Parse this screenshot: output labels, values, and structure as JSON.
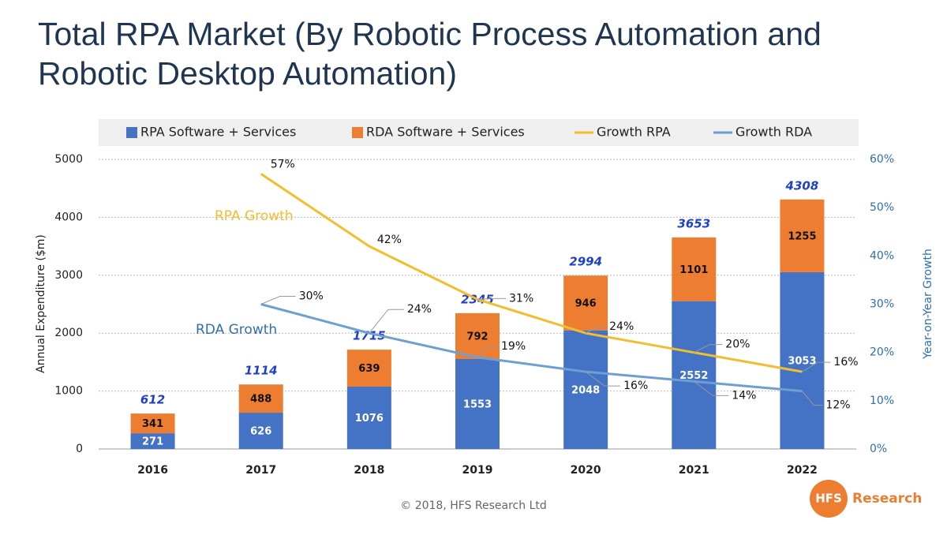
{
  "title": "Total RPA Market (By Robotic Process Automation and Robotic Desktop Automation)",
  "chart_data": {
    "type": "bar",
    "stacked": true,
    "y_label": "Annual Expenditure ($m)",
    "y2_label": "Year-on-Year Growth",
    "categories": [
      "2016",
      "2017",
      "2018",
      "2019",
      "2020",
      "2021",
      "2022"
    ],
    "series": [
      {
        "name": "RPA Software + Services",
        "type": "bar",
        "color": "#4472c4",
        "values": [
          271,
          626,
          1076,
          1553,
          2048,
          2552,
          3053
        ]
      },
      {
        "name": "RDA Software + Services",
        "type": "bar",
        "color": "#ed7d31",
        "values": [
          341,
          488,
          639,
          792,
          946,
          1101,
          1255
        ]
      },
      {
        "name": "Growth RPA",
        "type": "line",
        "axis": "y2",
        "color": "#f2bd2f",
        "values": [
          null,
          57,
          42,
          31,
          24,
          20,
          16
        ],
        "value_labels": [
          null,
          "57%",
          "42%",
          "31%",
          "24%",
          "20%",
          "16%"
        ]
      },
      {
        "name": "Growth RDA",
        "type": "line",
        "axis": "y2",
        "color": "#6e9fd3",
        "values": [
          null,
          30,
          24,
          19,
          16,
          14,
          12
        ],
        "value_labels": [
          null,
          "30%",
          "24%",
          "19%",
          "16%",
          "14%",
          "12%"
        ]
      }
    ],
    "totals": [
      612,
      1114,
      1715,
      2345,
      2994,
      3653,
      4308
    ],
    "ylim": [
      0,
      5000
    ],
    "yticks": [
      0,
      1000,
      2000,
      3000,
      4000,
      5000
    ],
    "y2lim": [
      0,
      60
    ],
    "y2ticks": [
      {
        "value": 0,
        "label": "0%"
      },
      {
        "value": 10,
        "label": "10%"
      },
      {
        "value": 20,
        "label": "20%"
      },
      {
        "value": 30,
        "label": "30%"
      },
      {
        "value": 40,
        "label": "40%"
      },
      {
        "value": 50,
        "label": "50%"
      },
      {
        "value": 60,
        "label": "60%"
      }
    ],
    "grid": true,
    "legend": "top",
    "annotations": [
      "RPA Growth",
      "RDA Growth"
    ]
  },
  "footer": "© 2018, HFS Research Ltd",
  "logo": {
    "mark": "HFS",
    "text": "Research"
  }
}
